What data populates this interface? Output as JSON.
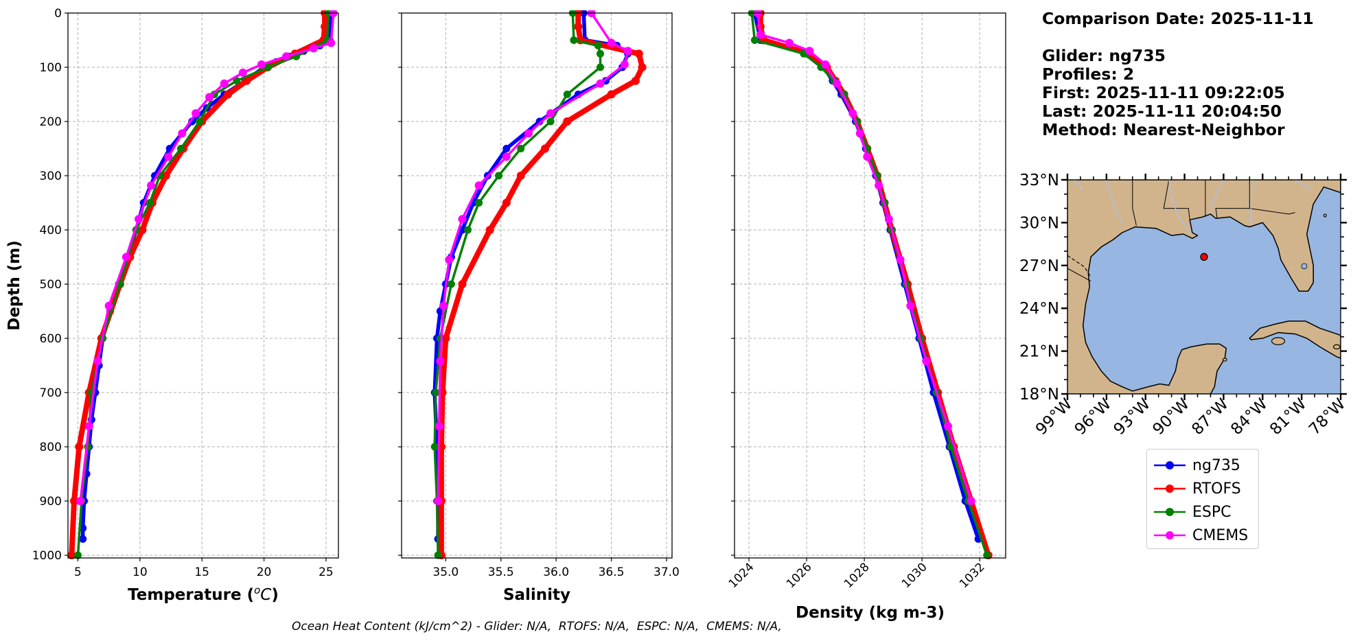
{
  "info": {
    "lines": [
      "Comparison Date: 2025-11-11",
      "",
      "Glider: ng735",
      "Profiles: 2",
      "First: 2025-11-11 09:22:05",
      "Last: 2025-11-11 20:04:50",
      "Method: Nearest-Neighbor"
    ]
  },
  "footer": "Ocean Heat Content (kJ/cm^2) - Glider: N/A,  RTOFS: N/A,  ESPC: N/A,  CMEMS: N/A,",
  "colors": {
    "ng735": "#0000ff",
    "RTOFS": "#ff0000",
    "ESPC": "#008000",
    "CMEMS": "#ff00ff",
    "land": "#d2b48c",
    "ocean": "#97b6e1"
  },
  "legend": [
    {
      "name": "ng735",
      "color": "#0000ff"
    },
    {
      "name": "RTOFS",
      "color": "#ff0000"
    },
    {
      "name": "ESPC",
      "color": "#008000"
    },
    {
      "name": "CMEMS",
      "color": "#ff00ff"
    }
  ],
  "map": {
    "lat_labels": [
      "33°N",
      "30°N",
      "27°N",
      "24°N",
      "21°N",
      "18°N"
    ],
    "lon_labels": [
      "99°W",
      "96°W",
      "93°W",
      "90°W",
      "87°W",
      "84°W",
      "81°W",
      "78°W"
    ],
    "lat_range": [
      18,
      33
    ],
    "lon_range": [
      -99,
      -78
    ],
    "marker": {
      "lon": -88.5,
      "lat": 27.6,
      "color": "#ff0000"
    }
  },
  "chart_data": [
    {
      "type": "line",
      "xlabel": "Temperature ($^oC$)",
      "ylabel": "Depth (m)",
      "xlim": [
        4.2,
        26
      ],
      "ylim": [
        1005,
        0
      ],
      "xticks": [
        5,
        10,
        15,
        20,
        25
      ],
      "yticks": [
        0,
        100,
        200,
        300,
        400,
        500,
        600,
        700,
        800,
        900,
        1000
      ],
      "grid": true,
      "series": [
        {
          "name": "ng735",
          "color": "#0000ff",
          "depth": [
            0,
            50,
            60,
            70,
            80,
            90,
            100,
            125,
            150,
            175,
            200,
            250,
            300,
            350,
            400,
            450,
            500,
            550,
            600,
            650,
            700,
            750,
            800,
            850,
            900,
            950,
            970
          ],
          "values": [
            25.4,
            25.3,
            24.5,
            23.2,
            22.0,
            21.0,
            20.0,
            18.5,
            16.8,
            15.4,
            14.2,
            12.4,
            11.2,
            10.3,
            9.7,
            9.0,
            8.3,
            7.6,
            7.0,
            6.7,
            6.4,
            6.1,
            5.9,
            5.7,
            5.5,
            5.4,
            5.4
          ]
        },
        {
          "name": "RTOFS",
          "color": "#ff0000",
          "depth": [
            0,
            25,
            50,
            75,
            100,
            125,
            150,
            200,
            250,
            300,
            350,
            400,
            450,
            500,
            600,
            700,
            800,
            900,
            1000
          ],
          "values": [
            24.9,
            24.9,
            24.8,
            22.5,
            20.3,
            18.6,
            17.1,
            15.0,
            13.5,
            12.1,
            11.0,
            10.2,
            9.2,
            8.4,
            6.9,
            5.9,
            5.1,
            4.7,
            4.5
          ]
        },
        {
          "name": "ESPC",
          "color": "#008000",
          "depth": [
            0,
            50,
            80,
            100,
            125,
            150,
            200,
            250,
            300,
            350,
            400,
            500,
            600,
            700,
            800,
            900,
            1000
          ],
          "values": [
            25.2,
            25.1,
            22.6,
            20.3,
            17.8,
            16.0,
            14.8,
            13.3,
            11.6,
            10.8,
            9.7,
            8.4,
            7.0,
            6.1,
            5.8,
            5.3,
            5.0
          ]
        },
        {
          "name": "CMEMS",
          "color": "#ff00ff",
          "depth": [
            0,
            55,
            65,
            80,
            95,
            110,
            130,
            155,
            185,
            222,
            265,
            318,
            380,
            450,
            540,
            642,
            762,
            900
          ],
          "values": [
            25.6,
            25.4,
            24.0,
            21.8,
            19.8,
            18.3,
            16.8,
            15.6,
            14.5,
            13.4,
            12.3,
            10.9,
            9.9,
            8.9,
            7.5,
            6.6,
            5.9,
            5.2
          ]
        }
      ]
    },
    {
      "type": "line",
      "xlabel": "Salinity",
      "ylabel": "",
      "xlim": [
        34.6,
        37.05
      ],
      "ylim": [
        1005,
        0
      ],
      "xticks": [
        35.0,
        35.5,
        36.0,
        36.5,
        37.0
      ],
      "yticks": [
        0,
        100,
        200,
        300,
        400,
        500,
        600,
        700,
        800,
        900,
        1000
      ],
      "grid": true,
      "series": [
        {
          "name": "ng735",
          "color": "#0000ff",
          "depth": [
            0,
            50,
            60,
            75,
            100,
            125,
            150,
            200,
            250,
            300,
            350,
            400,
            450,
            500,
            550,
            600,
            700,
            800,
            900,
            970
          ],
          "values": [
            36.25,
            36.26,
            36.55,
            36.65,
            36.6,
            36.45,
            36.2,
            35.85,
            35.55,
            35.38,
            35.25,
            35.15,
            35.05,
            35.0,
            34.95,
            34.92,
            34.9,
            34.92,
            34.93,
            34.93
          ]
        },
        {
          "name": "RTOFS",
          "color": "#ff0000",
          "depth": [
            0,
            25,
            50,
            75,
            100,
            125,
            150,
            200,
            250,
            300,
            350,
            400,
            500,
            600,
            700,
            800,
            900,
            1000
          ],
          "values": [
            36.2,
            36.2,
            36.22,
            36.75,
            36.78,
            36.72,
            36.5,
            36.1,
            35.9,
            35.68,
            35.55,
            35.4,
            35.15,
            35.0,
            34.97,
            34.96,
            34.96,
            34.96
          ]
        },
        {
          "name": "ESPC",
          "color": "#008000",
          "depth": [
            0,
            50,
            60,
            75,
            100,
            150,
            200,
            250,
            300,
            350,
            400,
            500,
            600,
            700,
            800,
            900,
            1000
          ],
          "values": [
            36.15,
            36.16,
            36.38,
            36.4,
            36.4,
            36.1,
            35.95,
            35.68,
            35.48,
            35.3,
            35.2,
            35.05,
            34.95,
            34.91,
            34.9,
            34.92,
            34.93
          ]
        },
        {
          "name": "CMEMS",
          "color": "#ff00ff",
          "depth": [
            0,
            55,
            70,
            95,
            130,
            185,
            222,
            265,
            318,
            380,
            455,
            540,
            642,
            762,
            900
          ],
          "values": [
            36.32,
            36.5,
            36.65,
            36.62,
            36.4,
            35.95,
            35.75,
            35.55,
            35.3,
            35.15,
            35.03,
            34.98,
            34.95,
            34.94,
            34.93
          ]
        }
      ]
    },
    {
      "type": "line",
      "xlabel": "Density (kg m-3)",
      "ylabel": "",
      "xlim": [
        1023.5,
        1032.9
      ],
      "ylim": [
        1005,
        0
      ],
      "xticks": [
        1024,
        1026,
        1028,
        1030,
        1032
      ],
      "yticks": [
        0,
        100,
        200,
        300,
        400,
        500,
        600,
        700,
        800,
        900,
        1000
      ],
      "grid": true,
      "series": [
        {
          "name": "ng735",
          "color": "#0000ff",
          "depth": [
            0,
            50,
            75,
            100,
            125,
            150,
            200,
            250,
            300,
            350,
            400,
            500,
            600,
            700,
            800,
            900,
            970
          ],
          "values": [
            1024.2,
            1024.4,
            1026.0,
            1026.6,
            1026.9,
            1027.2,
            1027.7,
            1028.05,
            1028.4,
            1028.65,
            1028.9,
            1029.4,
            1029.9,
            1030.4,
            1030.95,
            1031.5,
            1031.95
          ]
        },
        {
          "name": "RTOFS",
          "color": "#ff0000",
          "depth": [
            0,
            25,
            50,
            75,
            100,
            125,
            150,
            200,
            250,
            300,
            350,
            400,
            500,
            600,
            700,
            800,
            900,
            1000
          ],
          "values": [
            1024.4,
            1024.4,
            1024.5,
            1026.1,
            1026.7,
            1027.0,
            1027.3,
            1027.75,
            1028.1,
            1028.45,
            1028.7,
            1028.95,
            1029.5,
            1030.0,
            1030.55,
            1031.1,
            1031.7,
            1032.3
          ]
        },
        {
          "name": "ESPC",
          "color": "#008000",
          "depth": [
            0,
            50,
            75,
            100,
            125,
            150,
            200,
            250,
            300,
            350,
            400,
            500,
            600,
            700,
            800,
            900,
            1000
          ],
          "values": [
            1024.1,
            1024.2,
            1025.9,
            1026.5,
            1026.95,
            1027.3,
            1027.75,
            1028.1,
            1028.45,
            1028.7,
            1028.95,
            1029.45,
            1029.95,
            1030.5,
            1031.0,
            1031.6,
            1032.25
          ]
        },
        {
          "name": "CMEMS",
          "color": "#ff00ff",
          "depth": [
            0,
            40,
            55,
            70,
            95,
            130,
            185,
            222,
            265,
            318,
            380,
            455,
            540,
            642,
            762,
            900
          ],
          "values": [
            1024.3,
            1024.4,
            1025.4,
            1026.1,
            1026.65,
            1027.05,
            1027.6,
            1027.85,
            1028.1,
            1028.5,
            1028.85,
            1029.25,
            1029.6,
            1030.15,
            1030.9,
            1031.7
          ]
        }
      ]
    }
  ]
}
